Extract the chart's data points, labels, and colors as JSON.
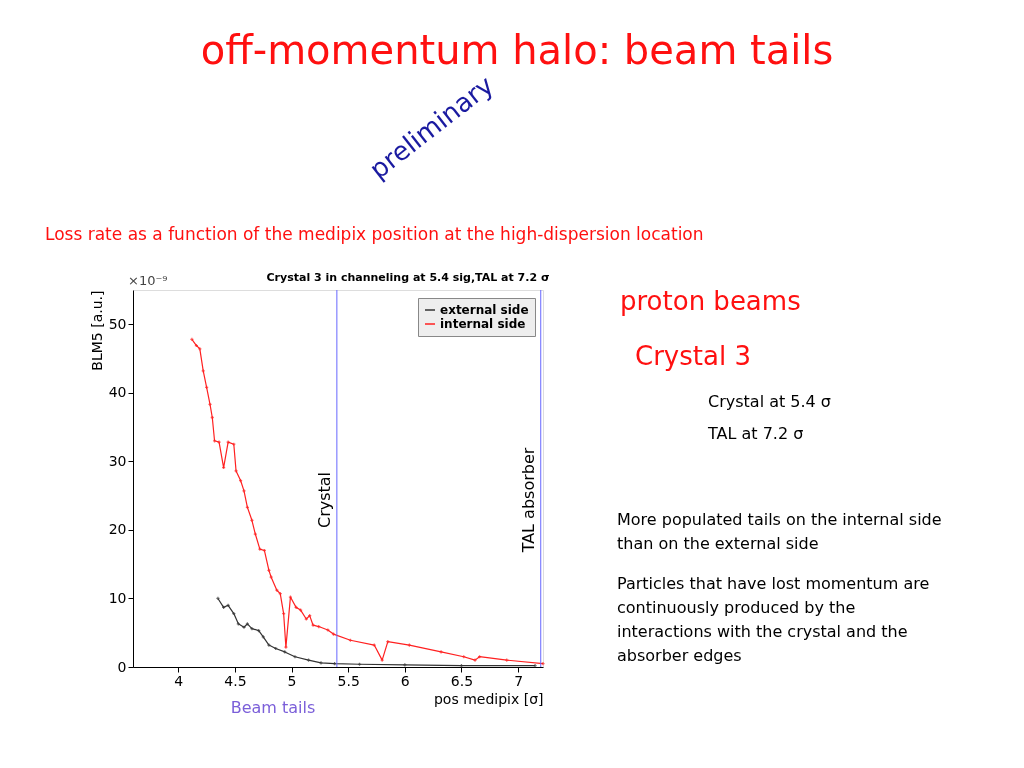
{
  "chart_data": {
    "type": "line",
    "title": "off-momentum halo: beam tails",
    "subtitle": "Loss rate as a function of the medipix position at the high-dispersion location",
    "xlabel": "pos medipix [σ]",
    "ylabel": "BLM5 [a.u.]",
    "xlim": [
      3.6,
      7.22
    ],
    "ylim": [
      0,
      55
    ],
    "xticks": [
      4,
      4.5,
      5,
      5.5,
      6,
      6.5,
      7
    ],
    "yticks": [
      0,
      10,
      20,
      30,
      40,
      50
    ],
    "grid": false,
    "legend": "top right",
    "marker": "cross",
    "line_style": "solid",
    "series": [
      {
        "name": "external side",
        "color": "#333333",
        "x": [
          4.35,
          4.4,
          4.44,
          4.49,
          4.53,
          4.58,
          4.61,
          4.65,
          4.71,
          4.75,
          4.8,
          4.86,
          4.94,
          5.03,
          5.15,
          5.26,
          5.38,
          5.6,
          6.0,
          6.5,
          7.15
        ],
        "values": [
          10.0,
          8.7,
          9.0,
          7.8,
          6.3,
          5.8,
          6.3,
          5.6,
          5.3,
          4.4,
          3.2,
          2.7,
          2.2,
          1.5,
          1.0,
          0.6,
          0.5,
          0.4,
          0.3,
          0.2,
          0.2
        ]
      },
      {
        "name": "internal side",
        "color": "#ff2020",
        "x": [
          4.12,
          4.16,
          4.19,
          4.22,
          4.25,
          4.28,
          4.3,
          4.32,
          4.36,
          4.4,
          4.44,
          4.49,
          4.51,
          4.55,
          4.58,
          4.61,
          4.65,
          4.68,
          4.72,
          4.76,
          4.8,
          4.82,
          4.87,
          4.9,
          4.93,
          4.95,
          4.99,
          5.04,
          5.08,
          5.13,
          5.16,
          5.19,
          5.24,
          5.32,
          5.37,
          5.52,
          5.73,
          5.8,
          5.85,
          6.04,
          6.32,
          6.52,
          6.62,
          6.66,
          6.9,
          7.22
        ],
        "values": [
          47.8,
          46.9,
          46.4,
          43.2,
          40.8,
          38.3,
          36.4,
          33.0,
          32.8,
          29.1,
          32.8,
          32.5,
          28.6,
          27.2,
          25.7,
          23.3,
          21.4,
          19.4,
          17.2,
          17.0,
          14.1,
          13.1,
          11.2,
          10.7,
          7.8,
          2.9,
          10.2,
          8.7,
          8.3,
          7.0,
          7.5,
          6.1,
          5.9,
          5.4,
          4.8,
          3.9,
          3.2,
          1.0,
          3.7,
          3.2,
          2.2,
          1.5,
          1.0,
          1.5,
          1.0,
          0.5
        ]
      }
    ],
    "ref_lines": [
      {
        "axis": "x",
        "value": 5.4,
        "label": "Crystal",
        "color": "#6666ff"
      },
      {
        "axis": "x",
        "value": 7.2,
        "label": "TAL absorber",
        "color": "#6666ff"
      }
    ],
    "annotations": [
      "Crystal 3 in channeling at 5.4 sig,TAL at 7.2 σ",
      "×10⁻⁹",
      "preliminary",
      "proton beams",
      "Crystal 3",
      "Crystal at 5.4 σ",
      "TAL at 7.2 σ",
      "More populated tails on the internal side than on the external side",
      "Particles that have lost momentum are continuously produced by the interactions with the crystal and the absorber edges",
      "Beam tails"
    ]
  }
}
